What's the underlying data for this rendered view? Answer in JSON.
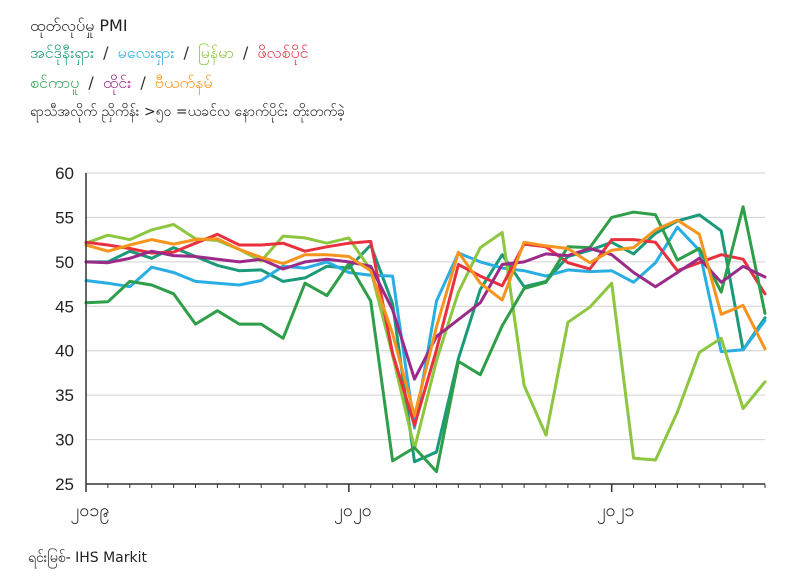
{
  "title": "ထုတ်လုပ်မှု PMI",
  "legend_separator": "/",
  "subtitle": "ရာသီအလိုက် ညှိကိန်း >၅၀ =ယခင်လ နောက်ပိုင်း တိုးတက်ခဲ့",
  "source": "ရင်းမြစ်- IHS Markit",
  "chart_data": {
    "type": "line",
    "ylim": [
      25,
      60
    ],
    "yticks": [
      25,
      30,
      35,
      40,
      45,
      50,
      55,
      60
    ],
    "xticks": [
      {
        "label": "၂၀၁၉",
        "index": 0
      },
      {
        "label": "၂၀၂၀",
        "index": 12
      },
      {
        "label": "၂၀၂၁",
        "index": 24
      }
    ],
    "series": [
      {
        "name": "အင်ဒိုနီးရှား",
        "color": "#1a9a7a",
        "values": [
          50.0,
          50.0,
          51.2,
          50.4,
          51.6,
          50.6,
          49.6,
          49.0,
          49.1,
          47.8,
          48.2,
          49.5,
          49.3,
          51.9,
          45.3,
          27.5,
          28.6,
          39.1,
          46.9,
          50.8,
          47.2,
          47.8,
          50.6,
          51.3,
          52.2,
          50.9,
          53.2,
          54.6,
          55.3,
          53.5,
          40.1,
          43.7
        ]
      },
      {
        "name": "မလေးရှား",
        "color": "#29aee3",
        "values": [
          47.9,
          47.6,
          47.2,
          49.4,
          48.8,
          47.8,
          47.6,
          47.4,
          47.9,
          49.5,
          49.3,
          50.0,
          48.8,
          48.5,
          48.4,
          31.3,
          45.6,
          51.0,
          50.0,
          49.3,
          49.0,
          48.4,
          49.1,
          48.9,
          49.0,
          47.7,
          49.9,
          53.9,
          51.3,
          39.9,
          40.1,
          43.4
        ]
      },
      {
        "name": "မြန်မာ",
        "color": "#8dc63f",
        "values": [
          52.1,
          53.0,
          52.5,
          53.6,
          54.2,
          52.6,
          52.4,
          51.4,
          50.1,
          52.9,
          52.7,
          52.1,
          52.7,
          49.1,
          39.5,
          29.0,
          38.9,
          46.6,
          51.6,
          53.3,
          36.1,
          30.5,
          43.2,
          44.9,
          47.6,
          27.9,
          27.7,
          33.1,
          39.8,
          41.4,
          33.5,
          36.5
        ]
      },
      {
        "name": "ဖိလစ်ပိုင်",
        "color": "#e8303e",
        "values": [
          52.2,
          51.9,
          51.5,
          51.0,
          51.1,
          52.1,
          53.1,
          51.9,
          51.9,
          52.1,
          51.2,
          51.7,
          52.1,
          52.3,
          39.7,
          31.6,
          40.1,
          49.7,
          48.4,
          47.3,
          52.0,
          51.7,
          49.9,
          49.2,
          52.5,
          52.5,
          52.2,
          49.0,
          49.9,
          50.8,
          50.3,
          46.4
        ]
      },
      {
        "name": "စင်ကာပူ",
        "color": "#2e9e49",
        "values": [
          45.4,
          45.5,
          47.8,
          47.4,
          46.4,
          43.0,
          44.5,
          43.0,
          43.0,
          41.4,
          47.6,
          46.2,
          49.8,
          45.6,
          27.6,
          29.1,
          26.4,
          38.8,
          37.3,
          42.8,
          47.0,
          47.7,
          51.7,
          51.6,
          55.0,
          55.6,
          55.3,
          50.2,
          51.5,
          46.6,
          56.2,
          44.2
        ]
      },
      {
        "name": "ထိုင်း",
        "color": "#9b2a88",
        "values": [
          50.0,
          49.9,
          50.4,
          51.2,
          50.7,
          50.6,
          50.3,
          50.0,
          50.3,
          49.2,
          50.0,
          50.3,
          50.0,
          49.5,
          44.6,
          36.8,
          41.6,
          43.5,
          45.4,
          49.7,
          50.0,
          50.9,
          50.7,
          51.5,
          50.8,
          48.8,
          47.2,
          48.8,
          50.4,
          47.7,
          49.5,
          48.3
        ]
      },
      {
        "name": "ဗီယက်နမ်",
        "color": "#f7941d",
        "values": [
          51.9,
          51.2,
          51.9,
          52.5,
          52.0,
          52.5,
          52.6,
          51.4,
          50.5,
          49.8,
          50.8,
          50.8,
          50.6,
          49.0,
          41.9,
          32.7,
          42.7,
          51.1,
          47.6,
          45.7,
          52.2,
          51.8,
          51.5,
          49.9,
          51.3,
          51.6,
          53.6,
          54.7,
          53.1,
          44.1,
          45.1,
          40.2
        ]
      }
    ]
  }
}
